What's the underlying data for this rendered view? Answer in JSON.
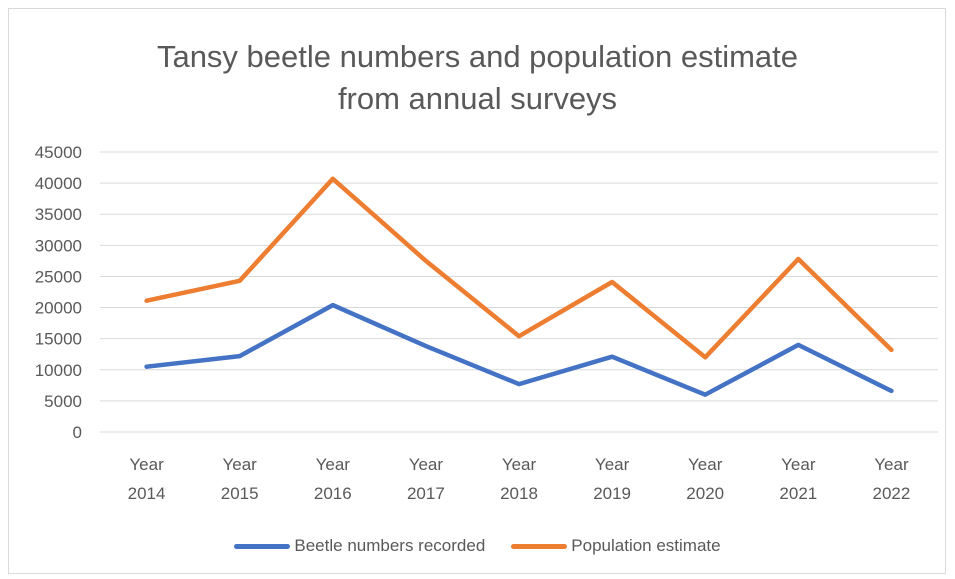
{
  "chart_data": {
    "type": "line",
    "title_lines": [
      "Tansy beetle numbers and population estimate",
      "from annual surveys"
    ],
    "categories": [
      [
        "Year",
        "2014"
      ],
      [
        "Year",
        "2015"
      ],
      [
        "Year",
        "2016"
      ],
      [
        "Year",
        "2017"
      ],
      [
        "Year",
        "2018"
      ],
      [
        "Year",
        "2019"
      ],
      [
        "Year",
        "2020"
      ],
      [
        "Year",
        "2021"
      ],
      [
        "Year",
        "2022"
      ]
    ],
    "ylim": [
      0,
      45000
    ],
    "yticks": [
      "0",
      "5000",
      "10000",
      "15000",
      "20000",
      "25000",
      "30000",
      "35000",
      "40000",
      "45000"
    ],
    "grid": true,
    "legend_position": "bottom",
    "series": [
      {
        "name": "Beetle numbers recorded",
        "color": "#4472c4",
        "values": [
          10500,
          12200,
          20400,
          13800,
          7700,
          12100,
          6000,
          14000,
          6600
        ]
      },
      {
        "name": "Population estimate",
        "color": "#ed7d31",
        "values": [
          21100,
          24300,
          40700,
          27500,
          15400,
          24100,
          12000,
          27800,
          13200
        ]
      }
    ]
  }
}
